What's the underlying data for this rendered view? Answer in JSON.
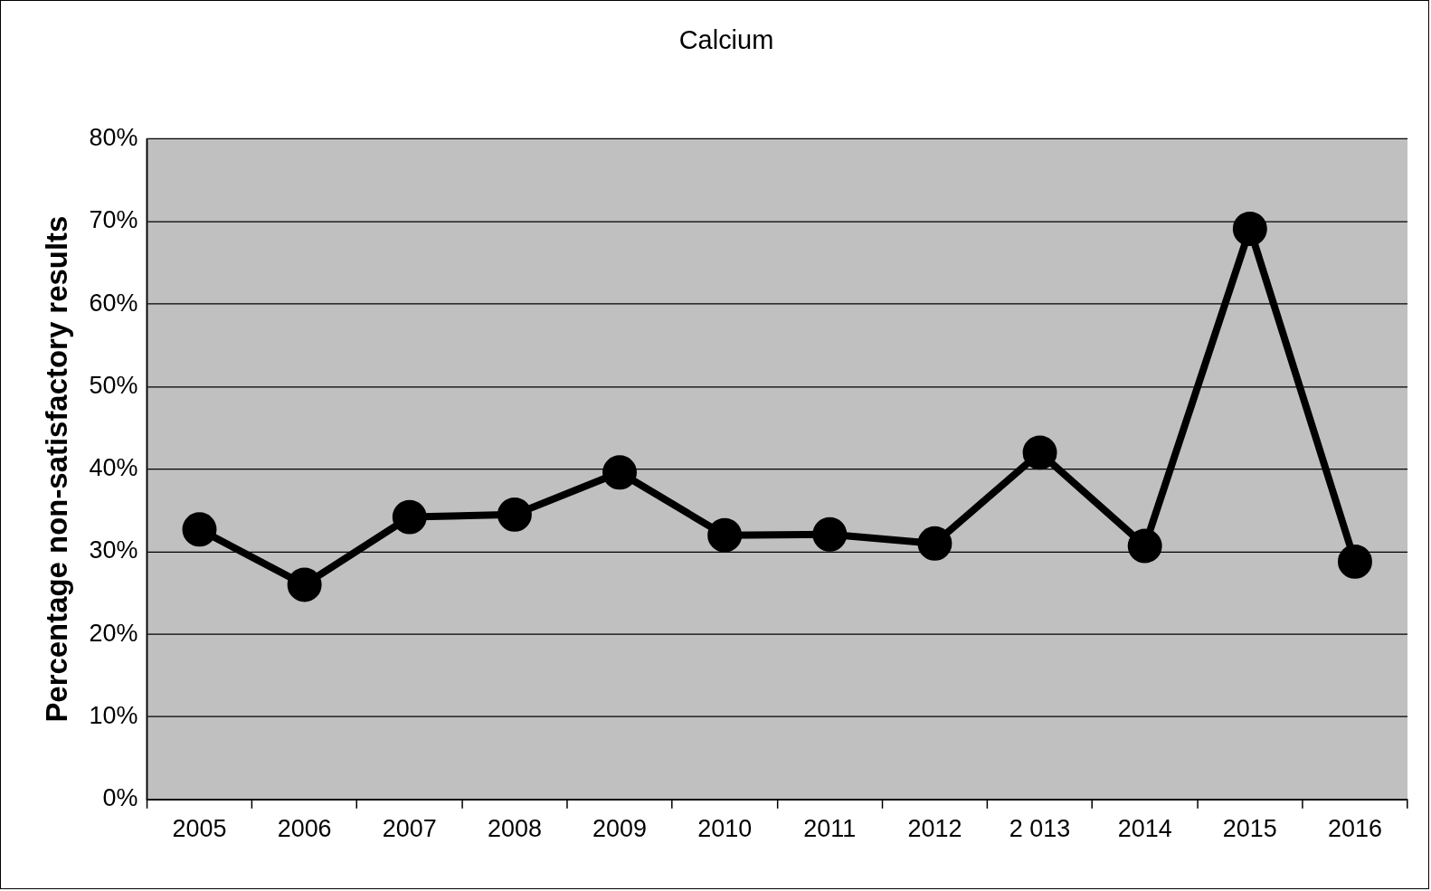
{
  "chart_data": {
    "type": "line",
    "title": "Calcium",
    "ylabel": "Percentage non-satisfactory results",
    "categories": [
      "2005",
      "2006",
      "2007",
      "2008",
      "2009",
      "2010",
      "2011",
      "2012",
      "2 013",
      "2014",
      "2015",
      "2016"
    ],
    "series": [
      {
        "color": "#000000",
        "values": [
          32.7,
          26.0,
          34.2,
          34.5,
          39.6,
          32.0,
          32.1,
          31.0,
          42.0,
          30.7,
          69.1,
          28.8
        ]
      }
    ],
    "ylim": [
      0,
      80
    ],
    "yticks": [
      {
        "value": 0,
        "label": "0%"
      },
      {
        "value": 10,
        "label": "10%"
      },
      {
        "value": 20,
        "label": "20%"
      },
      {
        "value": 30,
        "label": "30%"
      },
      {
        "value": 40,
        "label": "40%"
      },
      {
        "value": 50,
        "label": "50%"
      },
      {
        "value": 60,
        "label": "60%"
      },
      {
        "value": 70,
        "label": "70%"
      },
      {
        "value": 80,
        "label": "80%"
      }
    ],
    "grid": "y",
    "legend": false,
    "marker": "circle",
    "line_style": "solid"
  }
}
